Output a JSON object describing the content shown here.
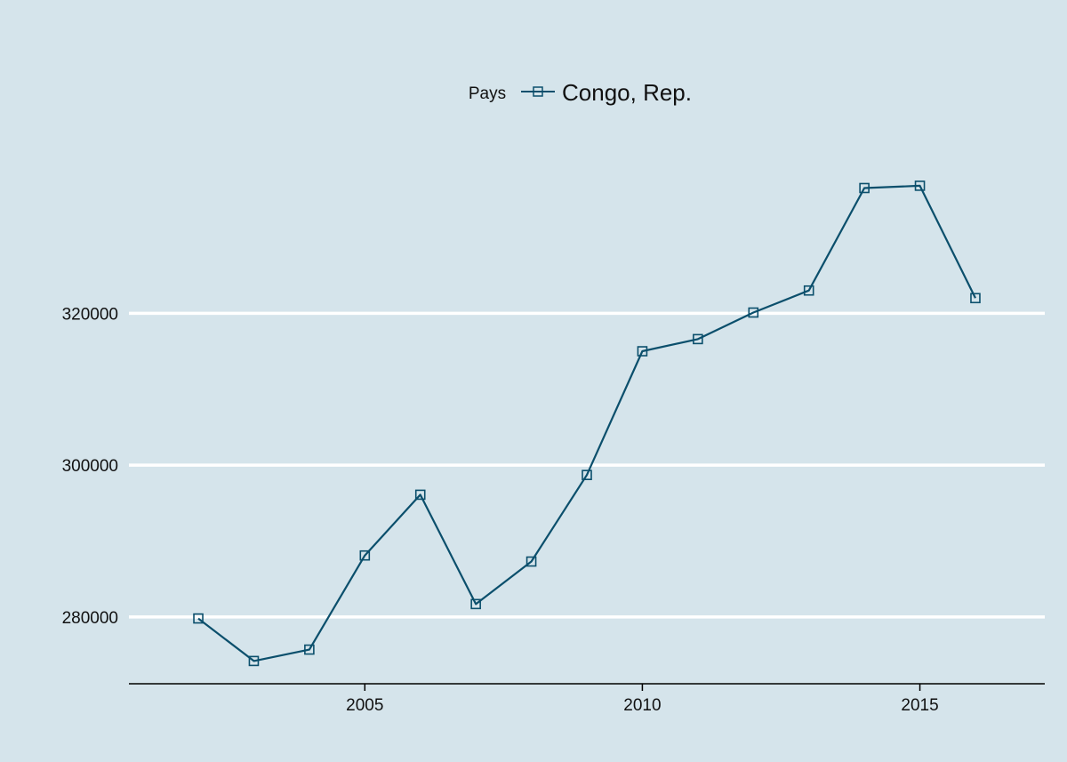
{
  "chart_data": {
    "type": "line",
    "title": "",
    "xlabel": "",
    "ylabel": "",
    "legend": {
      "title": "Pays",
      "entries": [
        "Congo, Rep."
      ],
      "placement": "top-center"
    },
    "x": [
      2002,
      2003,
      2004,
      2005,
      2006,
      2007,
      2008,
      2009,
      2010,
      2011,
      2012,
      2013,
      2014,
      2015,
      2016
    ],
    "series": [
      {
        "name": "Congo, Rep.",
        "color": "#0b4f6c",
        "marker": "hollow-square",
        "values": [
          279800,
          274200,
          275700,
          288100,
          296100,
          281700,
          287300,
          298700,
          315000,
          316600,
          320100,
          323000,
          336500,
          336800,
          322000
        ]
      }
    ],
    "xticks": [
      2005,
      2010,
      2015
    ],
    "yticks": [
      280000,
      300000,
      320000
    ],
    "xlim": [
      2000.75,
      2017.25
    ],
    "ylim": [
      271200,
      343700
    ],
    "grid": "horizontal",
    "background": "#d5e4eb",
    "grid_color": "#ffffff"
  }
}
